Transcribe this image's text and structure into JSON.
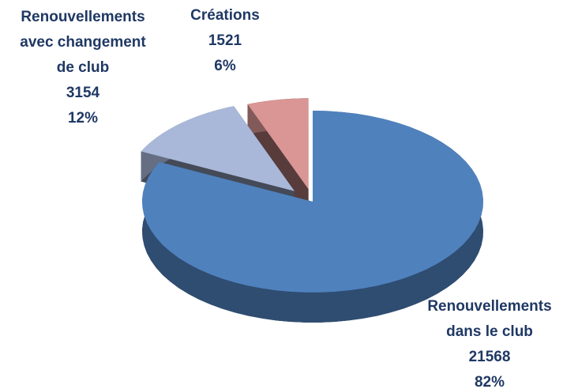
{
  "chart_data": {
    "type": "pie3d",
    "categories": [
      [
        "Renouvellements",
        "dans le club"
      ],
      [
        "Renouvellements",
        "avec changement",
        "de club"
      ],
      [
        "Créations"
      ]
    ],
    "values": [
      21568,
      3154,
      1521
    ],
    "percents": [
      82,
      12,
      6
    ],
    "percent_labels": [
      "82%",
      "12%",
      "6%"
    ],
    "colors": [
      "#4f81bd",
      "#a9b8d9",
      "#d99694"
    ]
  }
}
